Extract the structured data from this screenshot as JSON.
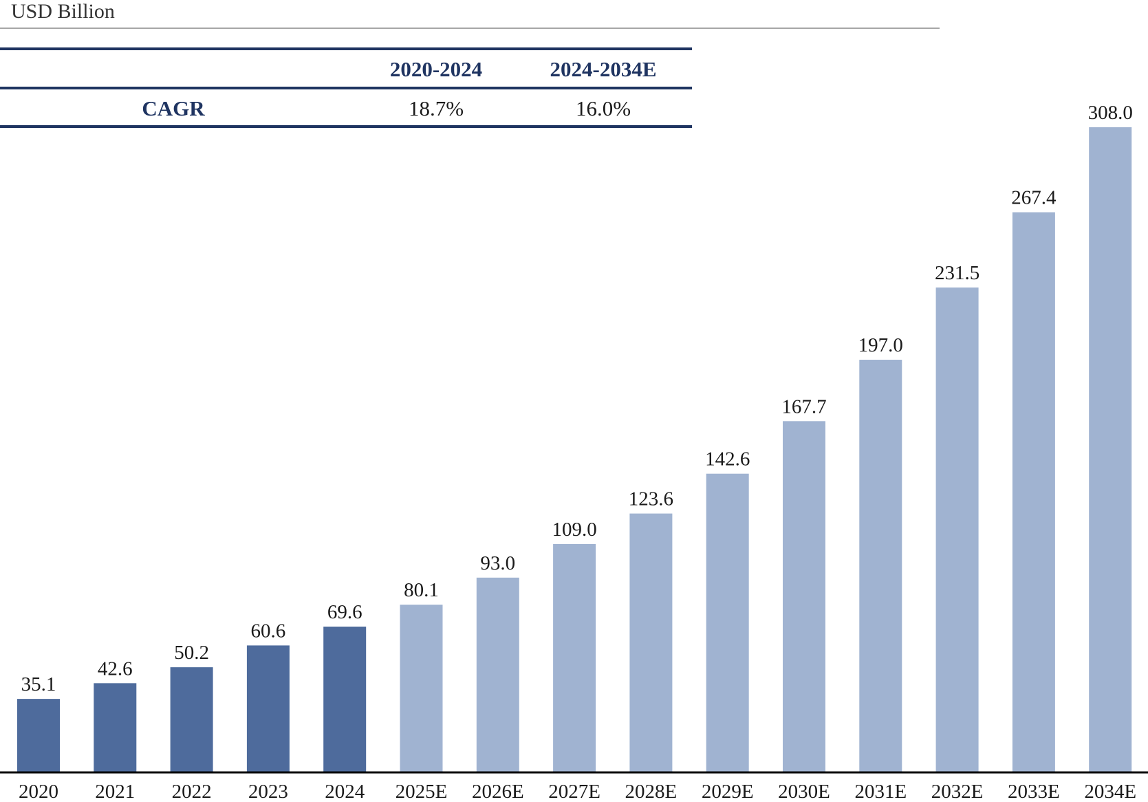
{
  "unit_label": "USD Billion",
  "cagr_table": {
    "headers": [
      "2020-2024",
      "2024-2034E"
    ],
    "row_label": "CAGR",
    "values": [
      "18.7%",
      "16.0%"
    ]
  },
  "colors": {
    "actual": "#4e6b9c",
    "forecast": "#a0b3d1",
    "table_accent": "#1f3461",
    "axis": "#000000"
  },
  "chart_data": {
    "type": "bar",
    "title": "",
    "xlabel": "",
    "ylabel": "USD Billion",
    "ylim": [
      0,
      308
    ],
    "grid": false,
    "categories": [
      "2020",
      "2021",
      "2022",
      "2023",
      "2024",
      "2025E",
      "2026E",
      "2027E",
      "2028E",
      "2029E",
      "2030E",
      "2031E",
      "2032E",
      "2033E",
      "2034E"
    ],
    "series": [
      {
        "values": [
          35.1,
          42.6,
          50.2,
          60.6,
          69.6,
          80.1,
          93.0,
          109.0,
          123.6,
          142.6,
          167.7,
          197.0,
          231.5,
          267.4,
          308.0
        ],
        "data_labels": [
          "35.1",
          "42.6",
          "50.2",
          "60.6",
          "69.6",
          "80.1",
          "93.0",
          "109.0",
          "123.6",
          "142.6",
          "167.7",
          "197.0",
          "231.5",
          "267.4",
          "308.0"
        ],
        "period": [
          "actual",
          "actual",
          "actual",
          "actual",
          "actual",
          "forecast",
          "forecast",
          "forecast",
          "forecast",
          "forecast",
          "forecast",
          "forecast",
          "forecast",
          "forecast",
          "forecast"
        ]
      }
    ]
  }
}
